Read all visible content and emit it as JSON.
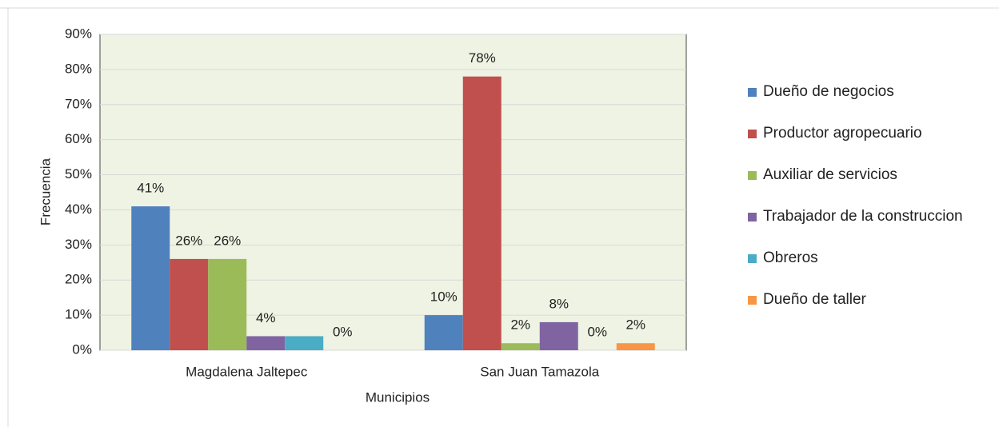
{
  "chart_data": {
    "type": "bar",
    "categories": [
      "Magdalena Jaltepec",
      "San Juan Tamazola"
    ],
    "xlabel": "Municipios",
    "ylabel": "Frecuencia",
    "series": [
      {
        "name": "Dueño de negocios",
        "color": "#4f81bd",
        "values": [
          41,
          10
        ],
        "value_labels": [
          "41%",
          "10%"
        ]
      },
      {
        "name": "Productor agropecuario",
        "color": "#c0504d",
        "values": [
          26,
          78
        ],
        "value_labels": [
          "26%",
          "78%"
        ]
      },
      {
        "name": "Auxiliar de servicios",
        "color": "#9bbb59",
        "values": [
          26,
          2
        ],
        "value_labels": [
          "26%",
          "2%"
        ]
      },
      {
        "name": "Trabajador de la construccion",
        "color": "#8064a2",
        "values": [
          4,
          8
        ],
        "value_labels": [
          "4%",
          "8%"
        ]
      },
      {
        "name": "Obreros",
        "color": "#4bacc6",
        "values": [
          4,
          0
        ],
        "value_labels": [
          null,
          "0%"
        ]
      },
      {
        "name": "Dueño de taller",
        "color": "#f79646",
        "values": [
          0,
          2
        ],
        "value_labels": [
          "0%",
          "2%"
        ]
      }
    ],
    "ylim": [
      0,
      90
    ],
    "yticks": [
      {
        "value": 0,
        "label": "0%"
      },
      {
        "value": 10,
        "label": "10%"
      },
      {
        "value": 20,
        "label": "20%"
      },
      {
        "value": 30,
        "label": "30%"
      },
      {
        "value": 40,
        "label": "40%"
      },
      {
        "value": 50,
        "label": "50%"
      },
      {
        "value": 60,
        "label": "60%"
      },
      {
        "value": 70,
        "label": "70%"
      },
      {
        "value": 80,
        "label": "80%"
      },
      {
        "value": 90,
        "label": "90%"
      }
    ],
    "grid": true,
    "legend": "right"
  }
}
